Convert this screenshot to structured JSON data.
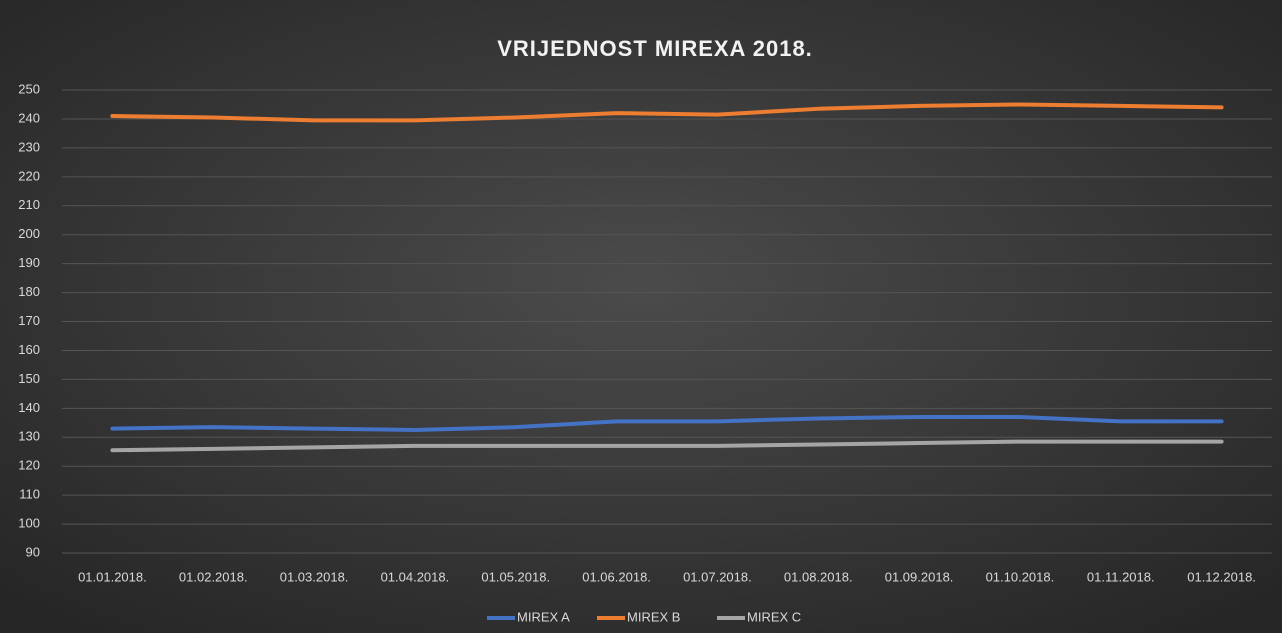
{
  "chart_data": {
    "type": "line",
    "title": "VRIJEDNOST MIREXA 2018.",
    "categories": [
      "01.01.2018.",
      "01.02.2018.",
      "01.03.2018.",
      "01.04.2018.",
      "01.05.2018.",
      "01.06.2018.",
      "01.07.2018.",
      "01.08.2018.",
      "01.09.2018.",
      "01.10.2018.",
      "01.11.2018.",
      "01.12.2018."
    ],
    "series": [
      {
        "name": "MIREX A",
        "color": "#4472c4",
        "values": [
          133,
          133.5,
          133,
          132.5,
          133.5,
          135.5,
          135.5,
          136.5,
          137,
          137,
          135.5,
          135.5
        ]
      },
      {
        "name": "MIREX B",
        "color": "#ed7d31",
        "values": [
          241,
          240.5,
          239.5,
          239.5,
          240.5,
          242,
          241.5,
          243.5,
          244.5,
          245,
          244.5,
          244
        ]
      },
      {
        "name": "MIREX C",
        "color": "#a5a5a5",
        "values": [
          125.5,
          126,
          126.5,
          127,
          127,
          127,
          127,
          127.5,
          128,
          128.5,
          128.5,
          128.5
        ]
      }
    ],
    "ylim": [
      90,
      250
    ],
    "yticks": [
      90,
      100,
      110,
      120,
      130,
      140,
      150,
      160,
      170,
      180,
      190,
      200,
      210,
      220,
      230,
      240,
      250
    ],
    "grid": true,
    "legend": "bottom"
  }
}
